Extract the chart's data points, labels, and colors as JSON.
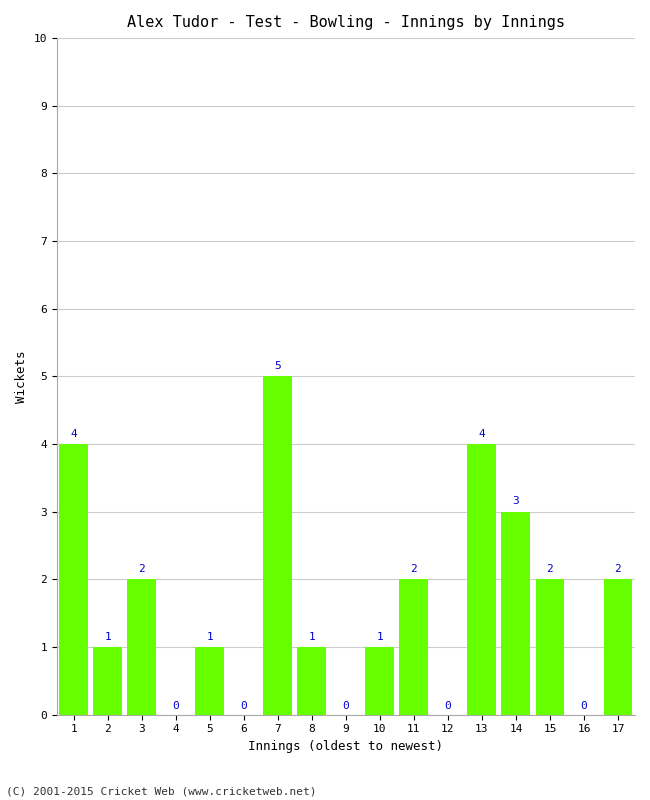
{
  "title": "Alex Tudor - Test - Bowling - Innings by Innings",
  "xlabel": "Innings (oldest to newest)",
  "ylabel": "Wickets",
  "categories": [
    "1",
    "2",
    "3",
    "4",
    "5",
    "6",
    "7",
    "8",
    "9",
    "10",
    "11",
    "12",
    "13",
    "14",
    "15",
    "16",
    "17"
  ],
  "values": [
    4,
    1,
    2,
    0,
    1,
    0,
    5,
    1,
    0,
    1,
    2,
    0,
    4,
    3,
    2,
    0,
    2
  ],
  "bar_color": "#66ff00",
  "label_color": "#0000cc",
  "ylim": [
    0,
    10
  ],
  "yticks": [
    0,
    1,
    2,
    3,
    4,
    5,
    6,
    7,
    8,
    9,
    10
  ],
  "grid_color": "#cccccc",
  "bg_color": "#ffffff",
  "title_fontsize": 11,
  "axis_label_fontsize": 9,
  "tick_fontsize": 8,
  "bar_label_fontsize": 8,
  "bar_width": 0.85,
  "footer": "(C) 2001-2015 Cricket Web (www.cricketweb.net)"
}
